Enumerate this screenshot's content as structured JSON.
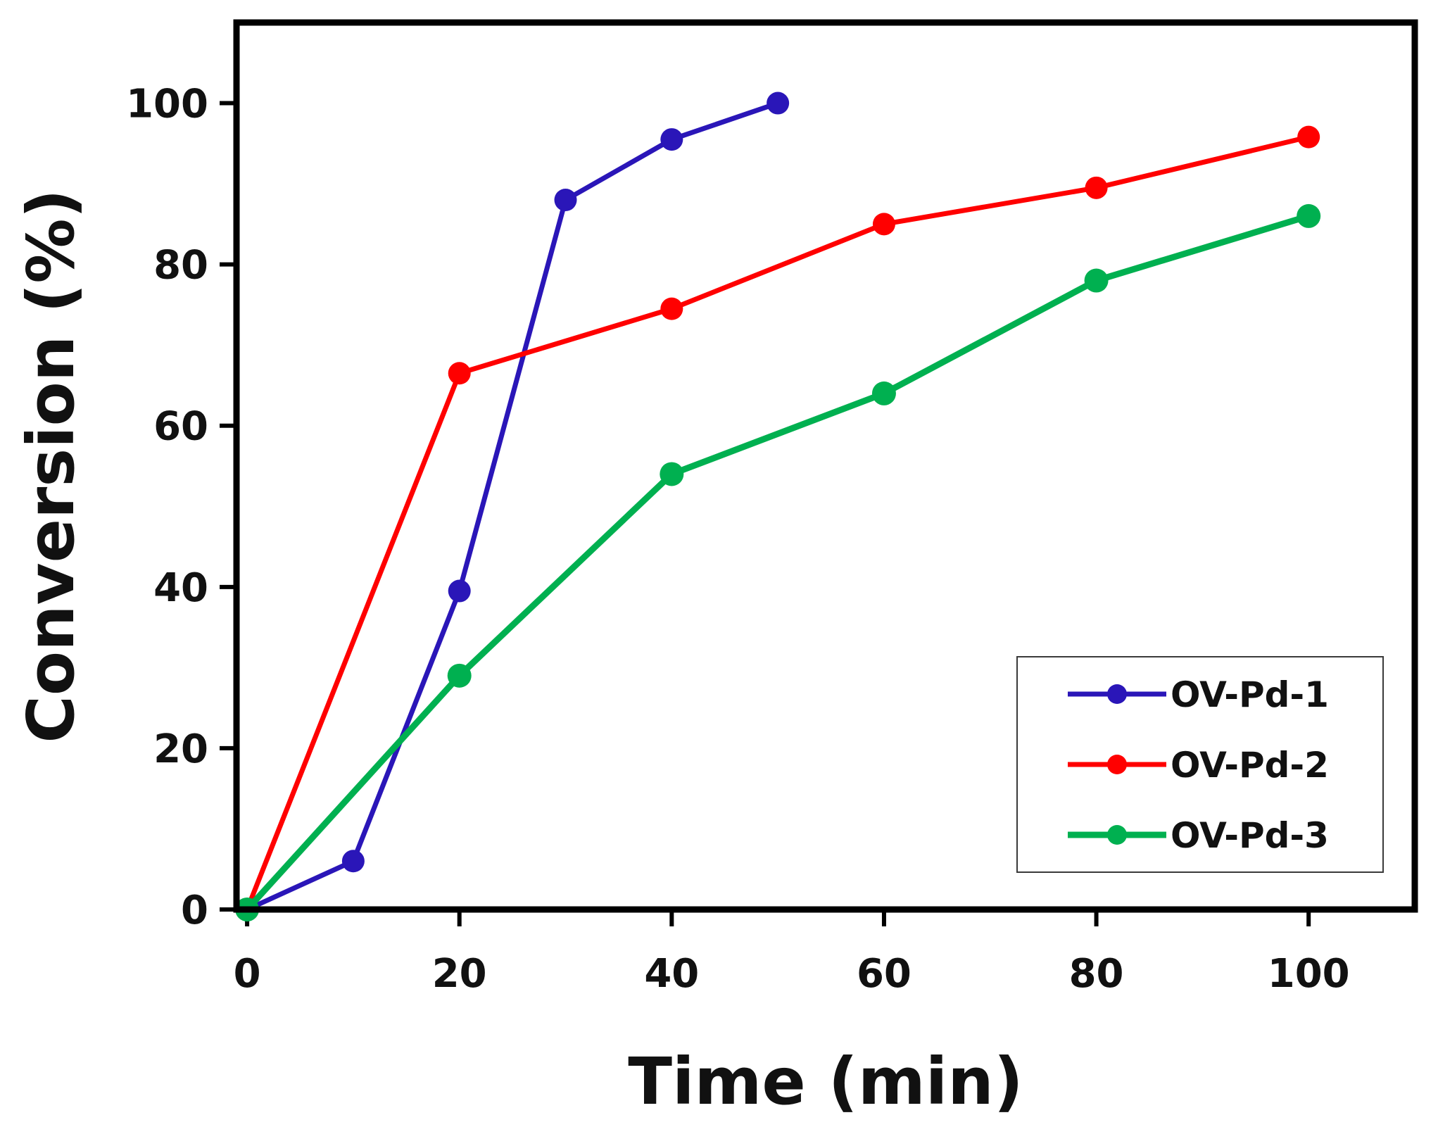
{
  "chart_data": {
    "type": "line",
    "title": "",
    "xlabel": "Time (min)",
    "ylabel": "Conversion (%)",
    "xlim": [
      -1,
      110
    ],
    "ylim": [
      0,
      110
    ],
    "xticks": [
      0,
      20,
      40,
      60,
      80,
      100
    ],
    "yticks": [
      0,
      20,
      40,
      60,
      80,
      100
    ],
    "grid": false,
    "legend_position": "bottom-right",
    "series": [
      {
        "name": "OV-Pd-1",
        "color": "#2a16b8",
        "x": [
          0,
          10,
          20,
          30,
          40,
          50
        ],
        "y": [
          0,
          6,
          39.5,
          88,
          95.5,
          100
        ]
      },
      {
        "name": "OV-Pd-2",
        "color": "#ff0000",
        "x": [
          0,
          20,
          40,
          60,
          80,
          100
        ],
        "y": [
          0,
          66.5,
          74.5,
          85,
          89.5,
          95.8
        ]
      },
      {
        "name": "OV-Pd-3",
        "color": "#00b050",
        "x": [
          0,
          20,
          40,
          60,
          80,
          100
        ],
        "y": [
          0,
          29,
          54,
          64,
          78,
          86
        ]
      }
    ]
  }
}
